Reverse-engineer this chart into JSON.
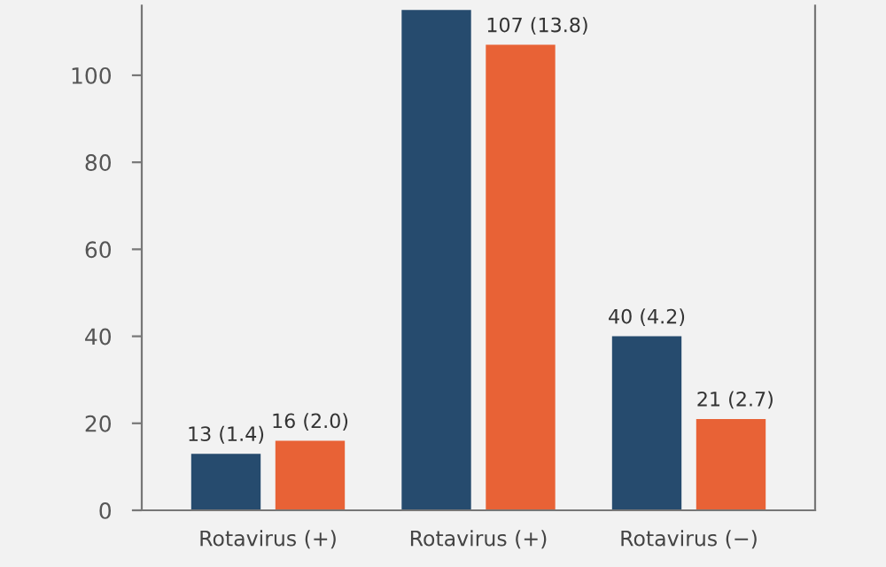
{
  "chart_data": {
    "type": "bar",
    "categories": [
      "Rotavirus (+)",
      "Rotavirus (+)",
      "Rotavirus (−)"
    ],
    "series": [
      {
        "color": "#264b6e",
        "values": [
          13,
          115,
          40
        ],
        "value_labels": [
          "13 (1.4)",
          null,
          "40 (4.2)"
        ]
      },
      {
        "color": "#e86236",
        "values": [
          16,
          107,
          21
        ],
        "value_labels": [
          "16 (2.0)",
          "107 (13.8)",
          "21 (2.7)"
        ]
      }
    ],
    "ylim": [
      0,
      116
    ],
    "yticks": [
      0,
      20,
      40,
      60,
      80,
      100
    ],
    "grid": false,
    "legend": false
  }
}
